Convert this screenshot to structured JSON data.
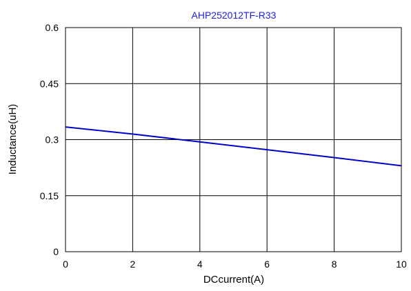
{
  "chart_data": {
    "type": "line",
    "title": "AHP252012TF-R33",
    "xlabel": "DCcurrent(A)",
    "ylabel": "Inductance(uH)",
    "xlim": [
      0,
      10
    ],
    "ylim": [
      0,
      0.6
    ],
    "x_ticks": [
      "0",
      "2",
      "4",
      "6",
      "8",
      "10"
    ],
    "y_ticks": [
      "0",
      "0.15",
      "0.3",
      "0.45",
      "0.6"
    ],
    "grid": true,
    "colors": {
      "title": "#1a1aff",
      "series": "#0000cc",
      "grid": "#000000"
    },
    "series": [
      {
        "x": [
          0,
          2,
          4,
          6,
          8,
          10
        ],
        "y": [
          0.334,
          0.315,
          0.294,
          0.273,
          0.252,
          0.23
        ]
      }
    ]
  }
}
